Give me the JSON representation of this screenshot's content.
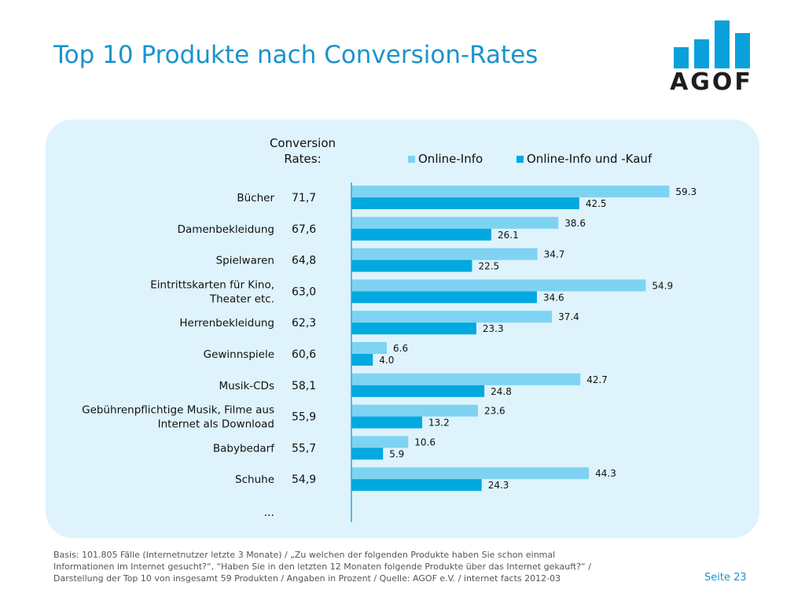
{
  "title": "Top 10 Produkte nach Conversion-Rates",
  "logo": {
    "text": "AGOF",
    "color": "#0aa0dc"
  },
  "conversion_header": [
    "Conversion",
    "Rates:"
  ],
  "legend": [
    {
      "label": "Online-Info",
      "color": "#7fd3f2"
    },
    {
      "label": "Online-Info und -Kauf",
      "color": "#00a9e0"
    }
  ],
  "chart_data": {
    "type": "bar",
    "orientation": "horizontal",
    "categories": [
      [
        "Bücher"
      ],
      [
        "Damenbekleidung"
      ],
      [
        "Spielwaren"
      ],
      [
        "Eintrittskarten für Kino,",
        "Theater etc."
      ],
      [
        "Herrenbekleidung"
      ],
      [
        "Gewinnspiele"
      ],
      [
        "Musik-CDs"
      ],
      [
        "Gebührenpflichtige Musik, Filme aus",
        "Internet als Download"
      ],
      [
        "Babybedarf"
      ],
      [
        "Schuhe"
      ]
    ],
    "conversion_rates": [
      "71,7",
      "67,6",
      "64,8",
      "63,0",
      "62,3",
      "60,6",
      "58,1",
      "55,9",
      "55,7",
      "54,9"
    ],
    "series": [
      {
        "name": "Online-Info",
        "color": "#7fd3f2",
        "values": [
          59.3,
          38.6,
          34.7,
          54.9,
          37.4,
          6.6,
          42.7,
          23.6,
          10.6,
          44.3
        ]
      },
      {
        "name": "Online-Info und -Kauf",
        "color": "#00a9e0",
        "values": [
          42.5,
          26.1,
          22.5,
          34.6,
          23.3,
          4.0,
          24.8,
          13.2,
          5.9,
          24.3
        ]
      }
    ],
    "xlim": [
      0,
      100
    ],
    "continuation": "..."
  },
  "footer": [
    "Basis: 101.805 Fälle (Internetnutzer letzte 3 Monate) / „Zu welchen der folgenden Produkte haben Sie schon einmal",
    "Informationen im Internet gesucht?“, “Haben Sie in den letzten 12 Monaten folgende Produkte über das Internet gekauft?“ /",
    "Darstellung der Top 10 von insgesamt 59 Produkten / Angaben in Prozent / Quelle: AGOF e.V. / internet facts 2012-03"
  ],
  "page_number": "Seite 23"
}
